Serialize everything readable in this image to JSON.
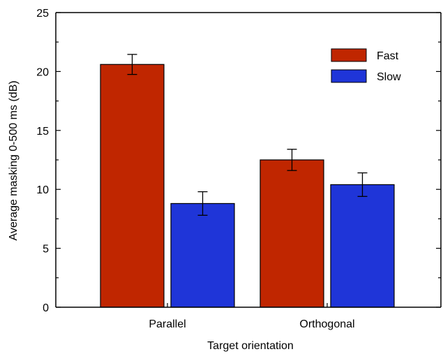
{
  "chart_data": {
    "type": "bar",
    "title": "",
    "xlabel": "Target orientation",
    "ylabel": "Average masking 0-500 ms (dB)",
    "categories": [
      "Parallel",
      "Orthogonal"
    ],
    "ylim": [
      0,
      25
    ],
    "yticks": [
      "0",
      "5",
      "10",
      "15",
      "20",
      "25"
    ],
    "grid": false,
    "legend_position": "top-right",
    "series": [
      {
        "name": "Fast",
        "color": "#c02600",
        "values": [
          20.6,
          12.5
        ],
        "errors": [
          0.85,
          0.9
        ]
      },
      {
        "name": "Slow",
        "color": "#1f35d8",
        "values": [
          8.8,
          10.4
        ],
        "errors": [
          1.0,
          1.0
        ]
      }
    ]
  }
}
